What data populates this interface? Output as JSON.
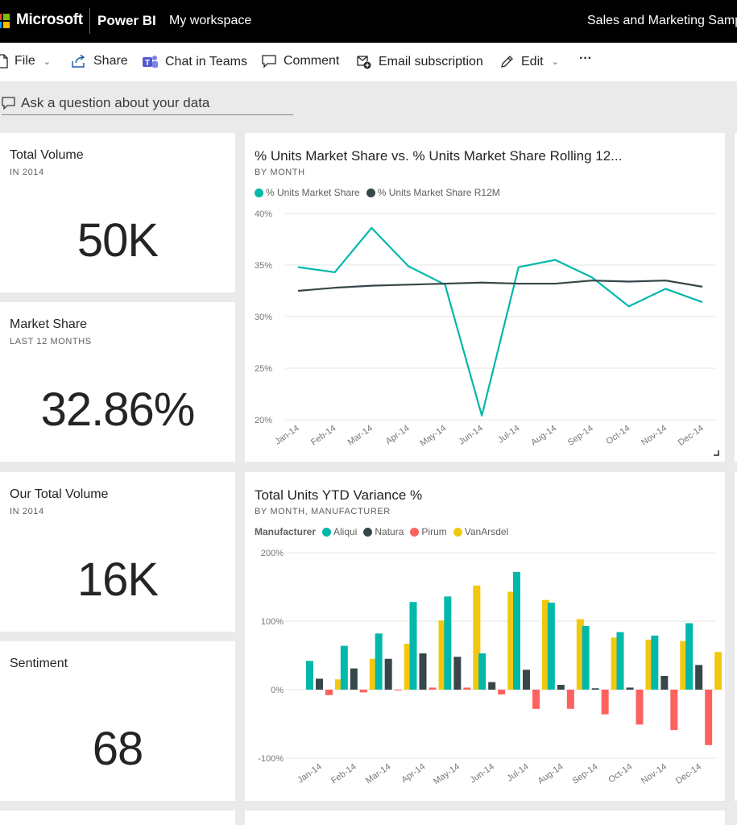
{
  "header": {
    "brand": "Microsoft",
    "product": "Power BI",
    "workspace": "My workspace",
    "report_title": "Sales and Marketing Samp",
    "logo_colors": [
      "#f25022",
      "#7fba00",
      "#00a4ef",
      "#ffb900"
    ]
  },
  "toolbar": {
    "file": "File",
    "share": "Share",
    "chat": "Chat in Teams",
    "comment": "Comment",
    "subscription": "Email subscription",
    "edit": "Edit",
    "more": "···"
  },
  "qa": {
    "placeholder": "Ask a question about your data"
  },
  "tiles": {
    "total_volume": {
      "title": "Total Volume",
      "subtitle": "IN 2014",
      "value": "50K"
    },
    "market_share": {
      "title": "Market Share",
      "subtitle": "LAST 12 MONTHS",
      "value": "32.86%"
    },
    "our_total_volume": {
      "title": "Our Total Volume",
      "subtitle": "IN 2014",
      "value": "16K"
    },
    "sentiment": {
      "title": "Sentiment",
      "value": "68"
    }
  },
  "colors": {
    "teal": "#01b8aa",
    "dark": "#374649",
    "red": "#fd625e",
    "yellow": "#f2c80f",
    "grid": "#e6e6e6",
    "axis_text": "#777777"
  },
  "chart_data": [
    {
      "type": "line",
      "title": "% Units Market Share vs. % Units Market Share Rolling 12...",
      "subtitle": "BY MONTH",
      "x": [
        "Jan-14",
        "Feb-14",
        "Mar-14",
        "Apr-14",
        "May-14",
        "Jun-14",
        "Jul-14",
        "Aug-14",
        "Sep-14",
        "Oct-14",
        "Nov-14",
        "Dec-14"
      ],
      "yticks": [
        "40%",
        "35%",
        "30%",
        "25%",
        "20%"
      ],
      "ylim": [
        20,
        40
      ],
      "grid": true,
      "legend": "top-left",
      "series": [
        {
          "name": "% Units Market Share",
          "color": "#01b8aa",
          "values": [
            34.8,
            34.3,
            38.6,
            34.9,
            33.1,
            20.4,
            34.8,
            35.5,
            33.8,
            31.0,
            32.7,
            31.4
          ]
        },
        {
          "name": "% Units Market Share R12M",
          "color": "#374649",
          "values": [
            32.5,
            32.8,
            33.0,
            33.1,
            33.2,
            33.3,
            33.2,
            33.2,
            33.5,
            33.4,
            33.5,
            32.9
          ]
        }
      ]
    },
    {
      "type": "bar",
      "title": "Total Units YTD Variance %",
      "subtitle": "BY MONTH, MANUFACTURER",
      "legend_title": "Manufacturer",
      "categories": [
        "Jan-14",
        "Feb-14",
        "Mar-14",
        "Apr-14",
        "May-14",
        "Jun-14",
        "Jul-14",
        "Aug-14",
        "Sep-14",
        "Oct-14",
        "Nov-14",
        "Dec-14"
      ],
      "yticks": [
        "200%",
        "100%",
        "0%",
        "-100%"
      ],
      "ylim": [
        -100,
        200
      ],
      "grid": true,
      "legend": "top-left",
      "series": [
        {
          "name": "Aliqui",
          "color": "#01b8aa",
          "values": [
            42,
            64,
            82,
            128,
            136,
            53,
            172,
            127,
            93,
            84,
            79,
            97
          ]
        },
        {
          "name": "Natura",
          "color": "#374649",
          "values": [
            16,
            31,
            45,
            53,
            48,
            11,
            29,
            7,
            2,
            3,
            20,
            36
          ]
        },
        {
          "name": "Pirum",
          "color": "#fd625e",
          "values": [
            -8,
            -4,
            0,
            3,
            3,
            -7,
            -28,
            -28,
            -36,
            -51,
            -59,
            -81
          ]
        },
        {
          "name": "VanArsdel",
          "color": "#f2c80f",
          "values": [
            15,
            45,
            67,
            101,
            152,
            143,
            131,
            103,
            76,
            73,
            71,
            55
          ]
        }
      ]
    }
  ]
}
